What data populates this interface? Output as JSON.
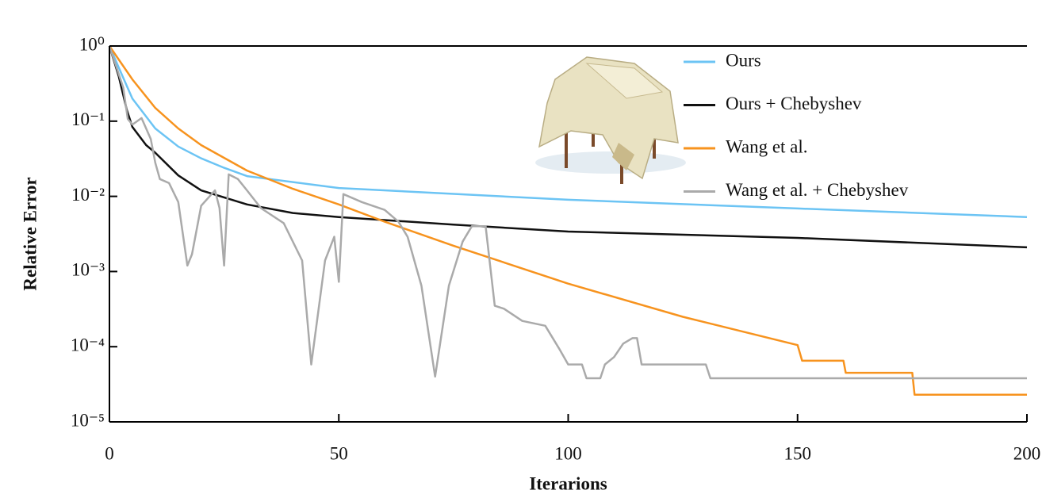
{
  "chart_data": {
    "type": "line",
    "xlabel": "Iterarions",
    "ylabel": "Relative Error",
    "xlim": [
      0,
      200
    ],
    "xticks": [
      0,
      50,
      100,
      150,
      200
    ],
    "ylim": [
      1e-05,
      1
    ],
    "log_y": true,
    "yticks": [
      {
        "value": 1,
        "label": "10⁰"
      },
      {
        "value": 0.1,
        "label": "10⁻¹"
      },
      {
        "value": 0.01,
        "label": "10⁻²"
      },
      {
        "value": 0.001,
        "label": "10⁻³"
      },
      {
        "value": 0.0001,
        "label": "10⁻⁴"
      },
      {
        "value": 1e-05,
        "label": "10⁻⁵"
      }
    ],
    "legend": "upper right",
    "series": [
      {
        "name": "Ours",
        "color": "#6cc4f4",
        "x": [
          0,
          2,
          5,
          10,
          15,
          20,
          25,
          30,
          50,
          100,
          150,
          200
        ],
        "values": [
          1,
          0.52,
          0.2,
          0.08,
          0.046,
          0.032,
          0.024,
          0.0186,
          0.0129,
          0.009,
          0.0069,
          0.0053
        ]
      },
      {
        "name": "Ours + Chebyshev",
        "color": "#111111",
        "x": [
          0,
          2,
          3.8,
          5,
          8,
          10,
          15,
          20,
          30,
          40,
          50,
          75,
          100,
          150,
          200
        ],
        "values": [
          1,
          0.4,
          0.14,
          0.084,
          0.048,
          0.038,
          0.019,
          0.012,
          0.0078,
          0.006,
          0.0053,
          0.0042,
          0.0034,
          0.0028,
          0.0021
        ]
      },
      {
        "name": "Wang et al.",
        "color": "#f7931e",
        "x": [
          0,
          5,
          10,
          15,
          20,
          30,
          40,
          50,
          60,
          75,
          100,
          125,
          150,
          151,
          160,
          160.5,
          175,
          175.5,
          200
        ],
        "values": [
          1,
          0.36,
          0.15,
          0.08,
          0.048,
          0.022,
          0.0126,
          0.0078,
          0.0046,
          0.0022,
          0.00069,
          0.00025,
          0.000105,
          6.5e-05,
          6.5e-05,
          4.5e-05,
          4.5e-05,
          2.3e-05,
          2.3e-05
        ]
      },
      {
        "name": "Wang et al. + Chebyshev",
        "color": "#aaaaaa",
        "x": [
          0,
          3,
          4,
          5,
          7,
          9,
          10,
          11,
          13,
          15,
          17,
          18,
          20,
          23,
          24,
          25,
          26,
          28,
          30,
          33,
          35,
          38,
          42,
          44,
          47,
          49,
          50,
          51,
          55,
          60,
          63,
          65,
          68,
          71,
          74,
          77,
          79,
          82,
          84,
          86,
          90,
          95,
          98,
          100,
          103,
          104,
          107,
          108,
          110,
          112,
          114,
          115,
          116,
          130,
          131,
          200
        ],
        "values": [
          1,
          0.28,
          0.107,
          0.09,
          0.11,
          0.058,
          0.028,
          0.017,
          0.015,
          0.0084,
          0.0012,
          0.0017,
          0.0075,
          0.012,
          0.007,
          0.0012,
          0.0196,
          0.017,
          0.012,
          0.007,
          0.0058,
          0.0044,
          0.0014,
          5.8e-05,
          0.0014,
          0.0029,
          0.00073,
          0.0107,
          0.0084,
          0.0066,
          0.0046,
          0.0029,
          0.00065,
          4e-05,
          0.00065,
          0.0025,
          0.004,
          0.004,
          0.00035,
          0.00032,
          0.00022,
          0.00019,
          9.5e-05,
          5.8e-05,
          5.8e-05,
          3.8e-05,
          3.8e-05,
          5.8e-05,
          7.3e-05,
          0.00011,
          0.00013,
          0.00013,
          5.8e-05,
          5.8e-05,
          3.8e-05,
          3.8e-05
        ]
      }
    ]
  }
}
